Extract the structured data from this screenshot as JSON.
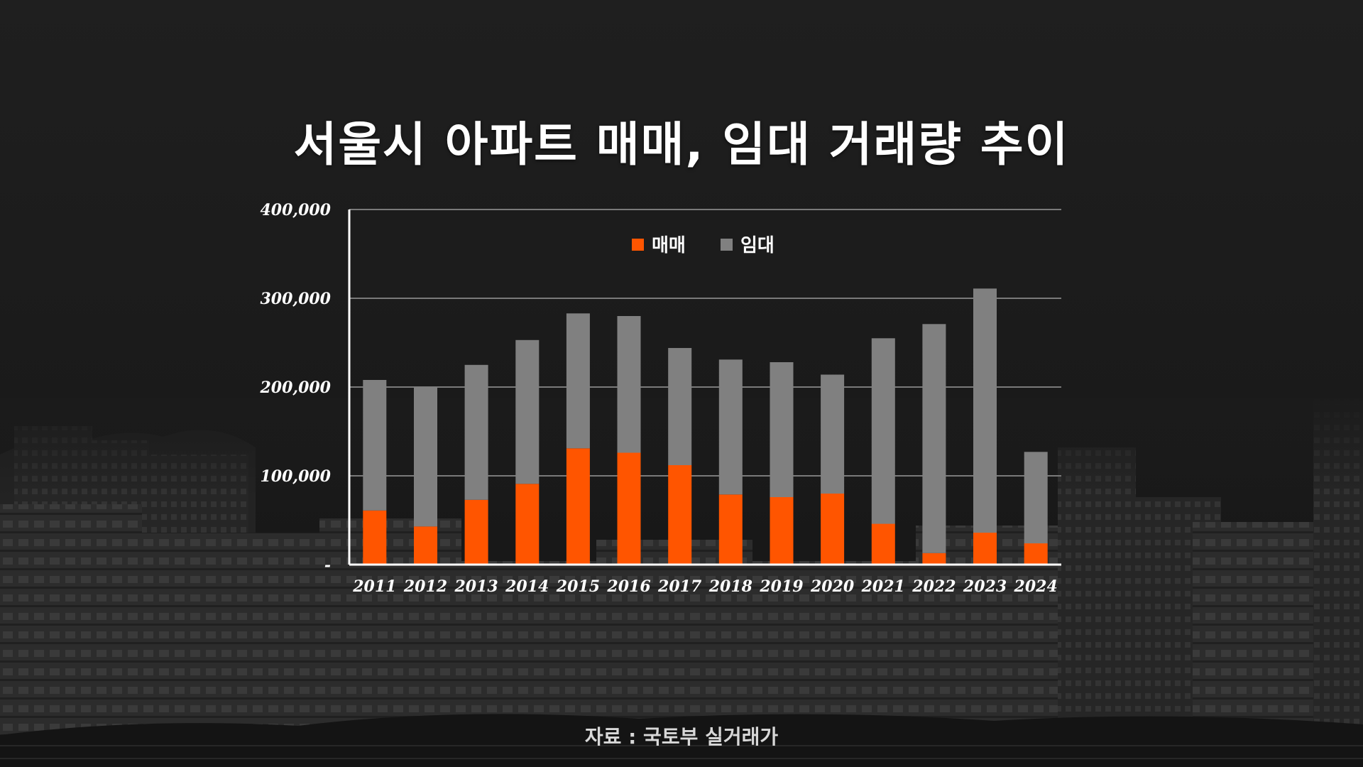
{
  "title": "서울시 아파트 매매, 임대 거래량 추이",
  "source_note": "자료 : 국토부 실거래가",
  "colors": {
    "sale": "#ff5500",
    "rent": "#808080",
    "background": "#1b1b1b",
    "text": "#ffffff",
    "grid": "#7a7a7a"
  },
  "chart_data": {
    "type": "bar",
    "stacked": true,
    "title": "서울시 아파트 매매, 임대 거래량 추이",
    "categories": [
      "2011",
      "2012",
      "2013",
      "2014",
      "2015",
      "2016",
      "2017",
      "2018",
      "2019",
      "2020",
      "2021",
      "2022",
      "2023",
      "2024"
    ],
    "series": [
      {
        "name": "매매",
        "color": "#ff5500",
        "values": [
          61000,
          43000,
          73000,
          91000,
          131000,
          126000,
          112000,
          79000,
          76000,
          80000,
          46000,
          13000,
          36000,
          24000
        ]
      },
      {
        "name": "임대",
        "color": "#808080",
        "values": [
          147000,
          157000,
          152000,
          162000,
          152000,
          154000,
          132000,
          152000,
          152000,
          134000,
          209000,
          258000,
          275000,
          103000
        ]
      }
    ],
    "totals": [
      208000,
      200000,
      225000,
      253000,
      283000,
      280000,
      244000,
      231000,
      228000,
      214000,
      255000,
      271000,
      311000,
      127000
    ],
    "ylim": [
      0,
      400000
    ],
    "yticks": [
      0,
      100000,
      200000,
      300000,
      400000
    ],
    "ytick_labels": [
      "-",
      "100,000",
      "200,000",
      "300,000",
      "400,000"
    ],
    "xlabel": "",
    "ylabel": "",
    "grid": true,
    "legend": {
      "position": "top-center",
      "entries": [
        "매매",
        "임대"
      ]
    }
  }
}
